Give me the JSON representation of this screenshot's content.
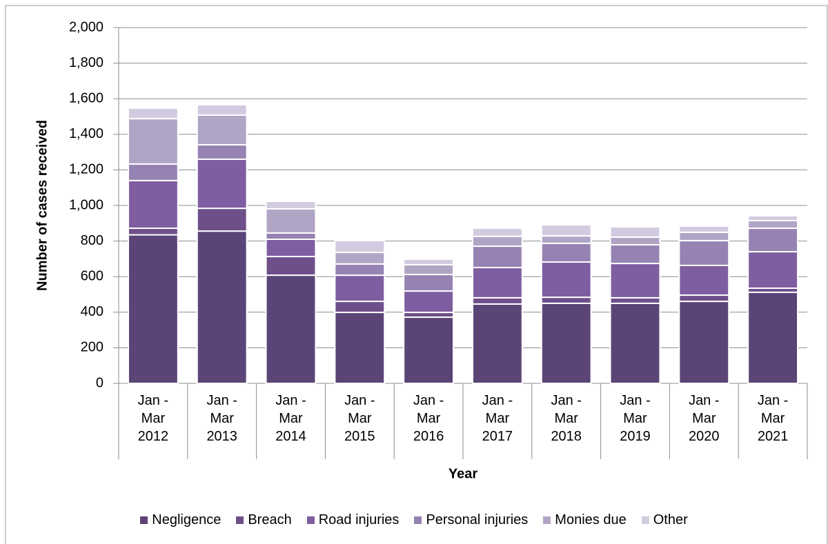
{
  "chart_data": {
    "type": "bar",
    "stacked": true,
    "y_label": "Number of cases received",
    "x_label": "Year",
    "categories": [
      "Jan - Mar 2012",
      "Jan - Mar 2013",
      "Jan - Mar 2014",
      "Jan - Mar 2015",
      "Jan - Mar 2016",
      "Jan - Mar 2017",
      "Jan - Mar 2018",
      "Jan - Mar 2019",
      "Jan - Mar 2020",
      "Jan - Mar 2021"
    ],
    "series": [
      {
        "name": "Negligence",
        "color": "#5b4577",
        "values": [
          835,
          856,
          608,
          399,
          372,
          446,
          450,
          450,
          461,
          512
        ]
      },
      {
        "name": "Breach",
        "color": "#6f4f8a",
        "values": [
          37,
          128,
          105,
          62,
          27,
          35,
          34,
          31,
          35,
          23
        ]
      },
      {
        "name": "Road injuries",
        "color": "#7e5ea0",
        "values": [
          268,
          276,
          97,
          147,
          120,
          170,
          198,
          193,
          167,
          205
        ]
      },
      {
        "name": "Personal injuries",
        "color": "#9682b3",
        "values": [
          93,
          81,
          35,
          63,
          93,
          120,
          105,
          105,
          139,
          132
        ]
      },
      {
        "name": "Monies due",
        "color": "#b1a5c6",
        "values": [
          255,
          167,
          136,
          65,
          55,
          55,
          42,
          43,
          47,
          43
        ]
      },
      {
        "name": "Other",
        "color": "#d2cbe0",
        "values": [
          59,
          58,
          42,
          66,
          31,
          46,
          62,
          58,
          35,
          27
        ]
      }
    ],
    "ylim": [
      0,
      2000
    ],
    "yticks": [
      0,
      {
        "value": 200,
        "label": "200"
      },
      400,
      600,
      800,
      {
        "value": 1000,
        "label": "1,000"
      },
      {
        "value": 1200,
        "label": "1,200"
      },
      {
        "value": 1400,
        "label": "1,400"
      },
      {
        "value": 1600,
        "label": "1,600"
      },
      {
        "value": 1800,
        "label": "1,800"
      },
      {
        "value": 2000,
        "label": "2,000"
      }
    ],
    "grid": true,
    "legend": "bottom"
  }
}
